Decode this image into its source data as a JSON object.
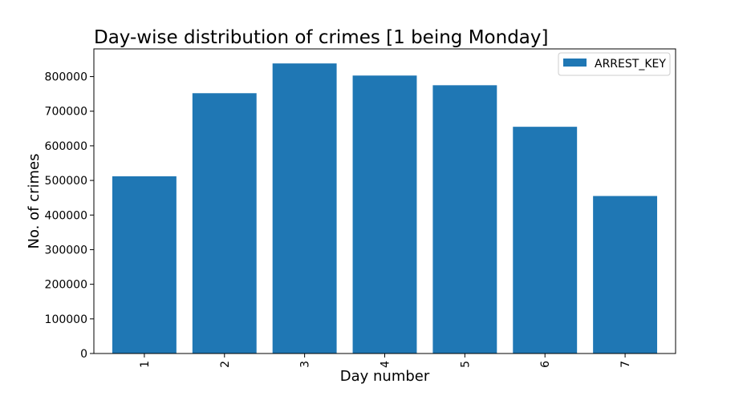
{
  "chart_data": {
    "type": "bar",
    "title": "Day-wise distribution of crimes [1 being Monday]",
    "xlabel": "Day number",
    "ylabel": "No. of crimes",
    "categories": [
      "1",
      "2",
      "3",
      "4",
      "5",
      "6",
      "7"
    ],
    "series": [
      {
        "name": "ARREST_KEY",
        "values": [
          512000,
          752000,
          838000,
          803000,
          775000,
          655000,
          455000
        ],
        "color": "#1f77b4"
      }
    ],
    "ylim": [
      0,
      880000
    ],
    "yticks": [
      0,
      100000,
      200000,
      300000,
      400000,
      500000,
      600000,
      700000,
      800000
    ],
    "ytick_labels": [
      "0",
      "100000",
      "200000",
      "300000",
      "400000",
      "500000",
      "600000",
      "700000",
      "800000"
    ],
    "grid": false,
    "legend_position": "top-right",
    "xtick_rotation": "vertical"
  }
}
